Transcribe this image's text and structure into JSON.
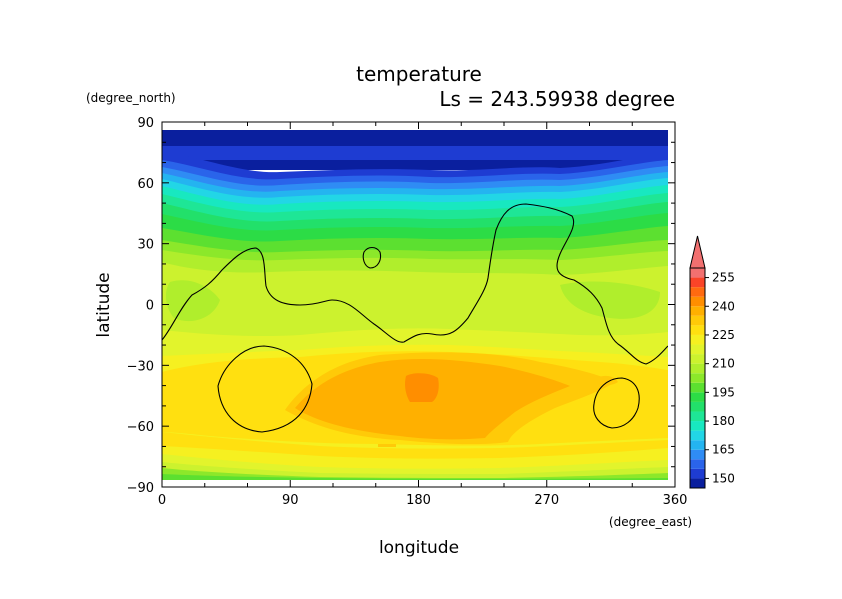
{
  "chart_data": {
    "type": "heatmap",
    "title": "temperature",
    "subtitle": "Ls = 243.59938 degree",
    "xlabel": "longitude",
    "ylabel": "latitude",
    "xunit": "(degree_east)",
    "yunit": "(degree_north)",
    "xlim": [
      0,
      360
    ],
    "ylim": [
      -90,
      90
    ],
    "x_ticks": [
      0,
      90,
      180,
      270,
      360
    ],
    "y_ticks": [
      90,
      60,
      30,
      0,
      -30,
      -60,
      -90
    ],
    "colorbar": {
      "ticks": [
        150,
        165,
        180,
        195,
        210,
        225,
        240,
        255
      ],
      "levels": [
        145,
        150,
        155,
        160,
        165,
        170,
        175,
        180,
        185,
        190,
        195,
        200,
        205,
        210,
        215,
        220,
        225,
        230,
        235,
        240,
        245,
        250,
        255,
        260
      ],
      "colors": [
        "#0a1f9e",
        "#1e3cd2",
        "#2a64ea",
        "#2f8cf4",
        "#24b4f0",
        "#22d6e6",
        "#18e8c0",
        "#1ee696",
        "#22e06a",
        "#2cdc46",
        "#5ce030",
        "#8ce82a",
        "#b0ee2c",
        "#ccf22e",
        "#e2f42c",
        "#f6f020",
        "#ffe010",
        "#ffca08",
        "#ffb000",
        "#ff8e00",
        "#ff6a10",
        "#fa4428",
        "#f27070"
      ],
      "extend": "max"
    },
    "data_extent": {
      "lon": [
        0,
        357.5
      ],
      "lat": [
        -87.5,
        87.5
      ]
    }
  }
}
